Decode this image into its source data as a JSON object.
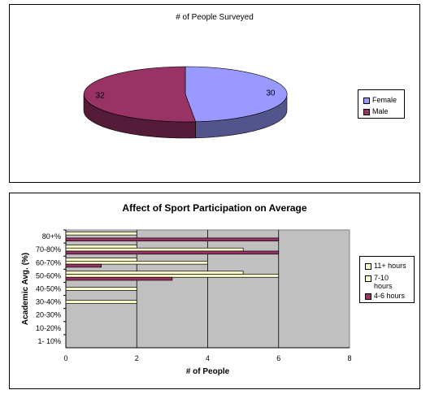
{
  "charts": {
    "pie": {
      "title": "# of People Surveyed",
      "legend": [
        "Female",
        "Male"
      ]
    },
    "bar": {
      "title": "Affect of Sport Participation on Average",
      "xlabel": "# of People",
      "ylabel": "Academic Avg. (%)",
      "legend": [
        "11+ hours",
        "7-10 hours",
        "4-6 hours"
      ]
    }
  },
  "chart_data": [
    {
      "type": "pie",
      "title": "# of People Surveyed",
      "style": "3d",
      "slices": [
        {
          "label": "Female",
          "value": 30,
          "color": "#9999ff"
        },
        {
          "label": "Male",
          "value": 32,
          "color": "#993366"
        }
      ],
      "legend_position": "right"
    },
    {
      "type": "bar",
      "orientation": "horizontal",
      "title": "Affect of Sport Participation on Average",
      "xlabel": "# of People",
      "ylabel": "Academic Avg. (%)",
      "categories": [
        "80+%",
        "70-80%",
        "60-70%",
        "50-60%",
        "40-50%",
        "30-40%",
        "20-30%",
        "10-20%",
        "1- 10%"
      ],
      "series": [
        {
          "name": "11+ hours",
          "color": "#ffffcc",
          "values": [
            2,
            2,
            2,
            5,
            0,
            0,
            0,
            0,
            0
          ]
        },
        {
          "name": "7-10 hours",
          "color": "#ffffcc",
          "values": [
            0,
            5,
            4,
            6,
            2,
            2,
            0,
            0,
            0
          ]
        },
        {
          "name": "4-6 hours",
          "color": "#993366",
          "values": [
            6,
            6,
            1,
            3,
            0,
            0,
            0,
            0,
            0
          ]
        }
      ],
      "extra_bars_note_free": true,
      "xlim": [
        0,
        8
      ],
      "xticks": [
        0,
        2,
        4,
        6,
        8
      ],
      "grid": true,
      "plot_background": "#c0c0c0",
      "legend_position": "right"
    }
  ]
}
